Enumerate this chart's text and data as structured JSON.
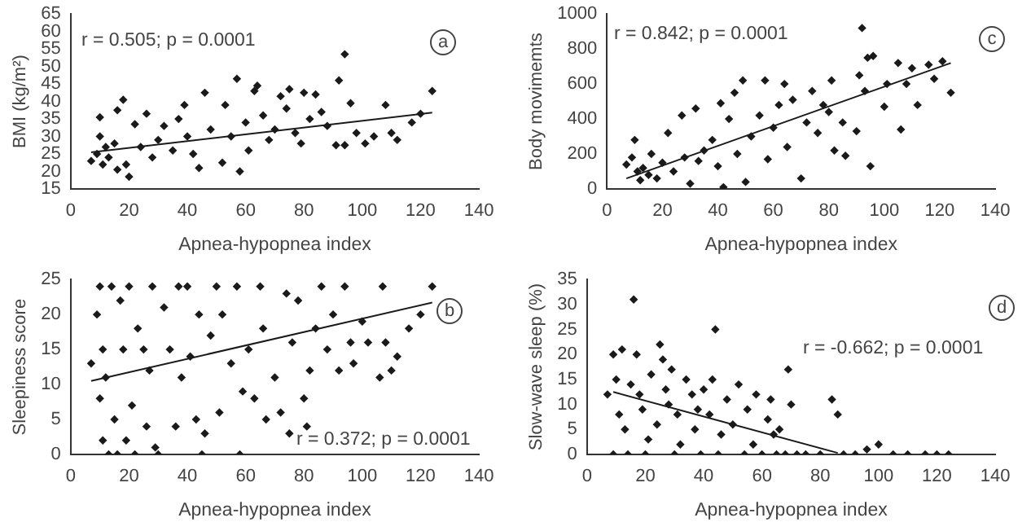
{
  "chart_data": [
    {
      "type": "scatter",
      "xlabel": "Apnea-hypopnea index",
      "ylabel": "BMI (kg/m²)",
      "annotations": [
        "r = 0.505; p = 0.0001",
        "a"
      ],
      "xlim": [
        0,
        140
      ],
      "xticks": [
        0,
        20,
        40,
        60,
        80,
        100,
        120,
        140
      ],
      "ylim": [
        15,
        65
      ],
      "yticks": [
        15,
        20,
        25,
        30,
        35,
        40,
        45,
        50,
        55,
        60,
        65
      ],
      "grid": false,
      "legend": false,
      "marker": "diamond",
      "series": [
        {
          "color": "#1a1a1a",
          "x": [
            7,
            9,
            10,
            10,
            11,
            12,
            13,
            15,
            16,
            16,
            18,
            19,
            20,
            22,
            24,
            26,
            28,
            30,
            32,
            35,
            37,
            39,
            40,
            42,
            44,
            46,
            48,
            52,
            53,
            55,
            57,
            58,
            60,
            61,
            63,
            64,
            66,
            68,
            70,
            72,
            74,
            75,
            77,
            79,
            80,
            82,
            84,
            86,
            88,
            91,
            92,
            94,
            94,
            96,
            98,
            101,
            104,
            108,
            110,
            112,
            117,
            120,
            124
          ],
          "values": [
            23,
            25,
            35.5,
            30,
            22,
            27,
            24,
            28,
            37.5,
            20.5,
            40.5,
            22,
            18.5,
            33.5,
            27,
            36.5,
            24,
            29,
            33,
            26,
            35,
            39,
            30,
            25,
            21,
            42.5,
            32,
            22.5,
            39,
            30,
            46.5,
            20,
            34,
            26,
            43,
            44.5,
            36,
            29,
            32,
            41.5,
            38,
            43.5,
            31,
            28,
            42.5,
            35,
            42,
            37,
            33,
            27.5,
            46,
            53.5,
            27.5,
            39.5,
            31,
            28,
            30,
            39,
            31,
            29,
            34,
            36.5,
            43
          ]
        },
        {
          "type": "line",
          "color": "#1a1a1a",
          "marker": "none",
          "line_style": "solid",
          "x": [
            7,
            124
          ],
          "values": [
            25.5,
            36.8
          ]
        }
      ]
    },
    {
      "type": "scatter",
      "xlabel": "Apnea-hypopnea index",
      "ylabel": "Body movimemts",
      "annotations": [
        "r = 0.842; p = 0.0001",
        "c"
      ],
      "xlim": [
        0,
        140
      ],
      "xticks": [
        0,
        20,
        40,
        60,
        80,
        100,
        120,
        140
      ],
      "ylim": [
        0,
        1000
      ],
      "yticks": [
        0,
        200,
        400,
        600,
        800,
        1000
      ],
      "grid": false,
      "legend": false,
      "marker": "diamond",
      "series": [
        {
          "color": "#1a1a1a",
          "x": [
            7,
            9,
            10,
            11,
            12,
            13,
            15,
            16,
            18,
            20,
            22,
            24,
            27,
            28,
            30,
            32,
            33,
            35,
            38,
            40,
            41,
            42,
            44,
            46,
            47,
            49,
            50,
            52,
            55,
            57,
            58,
            60,
            62,
            64,
            65,
            67,
            70,
            72,
            74,
            76,
            78,
            80,
            81,
            82,
            85,
            86,
            90,
            91,
            92,
            93,
            94,
            95,
            96,
            100,
            101,
            105,
            106,
            108,
            110,
            112,
            116,
            118,
            121,
            124
          ],
          "values": [
            140,
            180,
            280,
            100,
            50,
            120,
            80,
            200,
            60,
            150,
            320,
            100,
            420,
            180,
            30,
            460,
            160,
            220,
            280,
            130,
            490,
            10,
            400,
            550,
            200,
            620,
            40,
            300,
            420,
            620,
            170,
            350,
            480,
            600,
            240,
            510,
            60,
            380,
            560,
            320,
            480,
            440,
            620,
            220,
            380,
            190,
            330,
            650,
            920,
            560,
            750,
            130,
            760,
            470,
            600,
            720,
            340,
            600,
            690,
            480,
            710,
            630,
            730,
            550
          ]
        },
        {
          "type": "line",
          "color": "#1a1a1a",
          "marker": "none",
          "line_style": "solid",
          "x": [
            7,
            124
          ],
          "values": [
            60,
            720
          ]
        }
      ]
    },
    {
      "type": "scatter",
      "xlabel": "Apnea-hypopnea index",
      "ylabel": "Sleepiness score",
      "annotations": [
        "r = 0.372; p = 0.0001",
        "b"
      ],
      "xlim": [
        0,
        140
      ],
      "xticks": [
        0,
        20,
        40,
        60,
        80,
        100,
        120,
        140
      ],
      "ylim": [
        0,
        25
      ],
      "yticks": [
        0,
        5,
        10,
        15,
        20,
        25
      ],
      "grid": false,
      "legend": false,
      "marker": "diamond",
      "series": [
        {
          "color": "#1a1a1a",
          "x": [
            7,
            9,
            10,
            10,
            11,
            11,
            12,
            13,
            14,
            15,
            16,
            17,
            18,
            19,
            20,
            21,
            22,
            23,
            25,
            26,
            27,
            28,
            29,
            30,
            32,
            34,
            36,
            37,
            38,
            40,
            41,
            43,
            44,
            45,
            46,
            48,
            50,
            51,
            52,
            55,
            57,
            58,
            59,
            61,
            63,
            65,
            66,
            67,
            70,
            72,
            74,
            75,
            76,
            78,
            80,
            81,
            82,
            84,
            86,
            88,
            90,
            92,
            94,
            96,
            97,
            100,
            102,
            106,
            107,
            108,
            110,
            112,
            116,
            120,
            124
          ],
          "values": [
            13,
            20,
            24,
            8,
            2,
            15,
            11,
            0,
            24,
            5,
            0,
            22,
            15,
            2,
            24,
            7,
            0,
            18,
            15,
            4,
            12,
            24,
            1,
            0,
            21,
            15,
            4,
            24,
            11,
            24,
            14,
            5,
            20,
            0,
            3,
            17,
            24,
            6,
            20,
            13,
            24,
            0,
            9,
            15,
            8,
            24,
            18,
            5,
            11,
            6,
            23,
            3,
            16,
            22,
            8,
            4,
            12,
            18,
            24,
            15,
            20,
            12,
            24,
            16,
            13,
            19,
            16,
            11,
            24,
            16,
            12,
            14,
            18,
            20,
            24
          ]
        },
        {
          "type": "line",
          "color": "#1a1a1a",
          "marker": "none",
          "line_style": "solid",
          "x": [
            7,
            124
          ],
          "values": [
            10.5,
            21.7
          ]
        }
      ]
    },
    {
      "type": "scatter",
      "xlabel": "Apnea-hypopnea index",
      "ylabel": "Slow-wave sleep (%)",
      "annotations": [
        "r = -0.662; p = 0.0001",
        "d"
      ],
      "xlim": [
        0,
        140
      ],
      "xticks": [
        0,
        20,
        40,
        60,
        80,
        100,
        120,
        140
      ],
      "ylim": [
        0,
        35
      ],
      "yticks": [
        0,
        5,
        10,
        15,
        20,
        25,
        30,
        35
      ],
      "grid": false,
      "legend": false,
      "marker": "diamond",
      "series": [
        {
          "color": "#1a1a1a",
          "x": [
            7,
            9,
            9,
            10,
            11,
            12,
            13,
            14,
            15,
            16,
            17,
            18,
            19,
            20,
            21,
            22,
            24,
            25,
            26,
            27,
            28,
            29,
            30,
            31,
            32,
            34,
            36,
            37,
            38,
            39,
            40,
            42,
            43,
            44,
            45,
            46,
            48,
            50,
            52,
            54,
            55,
            57,
            58,
            60,
            62,
            63,
            64,
            65,
            66,
            68,
            69,
            70,
            72,
            75,
            80,
            84,
            86,
            88,
            92,
            96,
            100,
            105,
            110,
            116,
            120,
            124
          ],
          "values": [
            12,
            0,
            20,
            15,
            8,
            21,
            5,
            0,
            14,
            31,
            20,
            12,
            9,
            0,
            3,
            16,
            6,
            22,
            19,
            13,
            10,
            17,
            0,
            8,
            2,
            15,
            12,
            5,
            9,
            0,
            13,
            8,
            15,
            25,
            0,
            4,
            11,
            6,
            14,
            0,
            9,
            2,
            12,
            0,
            7,
            11,
            4,
            0,
            5,
            0,
            17,
            10,
            0,
            0,
            0,
            11,
            8,
            0,
            0,
            1,
            2,
            0,
            0,
            0,
            0,
            0
          ]
        },
        {
          "type": "line",
          "color": "#1a1a1a",
          "marker": "none",
          "line_style": "solid",
          "x": [
            9,
            86
          ],
          "values": [
            12.5,
            0.3
          ]
        }
      ]
    }
  ]
}
